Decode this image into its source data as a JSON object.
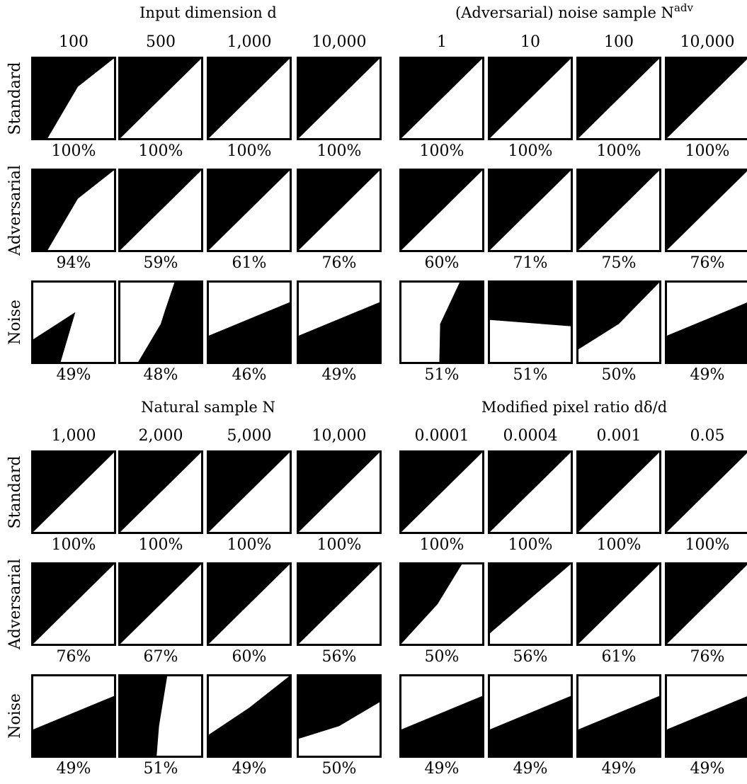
{
  "groups": [
    {
      "title": "Input dimension d",
      "columns": [
        "100",
        "500",
        "1,000",
        "10,000"
      ],
      "rows": [
        {
          "label": "Standard",
          "accuracies": [
            "100%",
            "100%",
            "100%",
            "100%"
          ]
        },
        {
          "label": "Adversarial",
          "accuracies": [
            "94%",
            "59%",
            "61%",
            "76%"
          ]
        },
        {
          "label": "Noise",
          "accuracies": [
            "49%",
            "48%",
            "46%",
            "49%"
          ]
        }
      ]
    },
    {
      "title": "(Adversarial) noise sample N^adv",
      "columns": [
        "1",
        "10",
        "100",
        "10,000"
      ],
      "rows": [
        {
          "label": "Standard",
          "accuracies": [
            "100%",
            "100%",
            "100%",
            "100%"
          ]
        },
        {
          "label": "Adversarial",
          "accuracies": [
            "60%",
            "71%",
            "75%",
            "76%"
          ]
        },
        {
          "label": "Noise",
          "accuracies": [
            "51%",
            "51%",
            "50%",
            "49%"
          ]
        }
      ]
    },
    {
      "title": "Natural sample N",
      "columns": [
        "1,000",
        "2,000",
        "5,000",
        "10,000"
      ],
      "rows": [
        {
          "label": "Standard",
          "accuracies": [
            "100%",
            "100%",
            "100%",
            "100%"
          ]
        },
        {
          "label": "Adversarial",
          "accuracies": [
            "76%",
            "67%",
            "60%",
            "56%"
          ]
        },
        {
          "label": "Noise",
          "accuracies": [
            "49%",
            "51%",
            "49%",
            "50%"
          ]
        }
      ]
    },
    {
      "title": "Modified pixel ratio dδ/d",
      "columns": [
        "0.0001",
        "0.0004",
        "0.001",
        "0.05"
      ],
      "rows": [
        {
          "label": "Standard",
          "accuracies": [
            "100%",
            "100%",
            "100%",
            "100%"
          ]
        },
        {
          "label": "Adversarial",
          "accuracies": [
            "50%",
            "56%",
            "61%",
            "76%"
          ]
        },
        {
          "label": "Noise",
          "accuracies": [
            "49%",
            "49%",
            "49%",
            "49%"
          ]
        }
      ]
    }
  ]
}
